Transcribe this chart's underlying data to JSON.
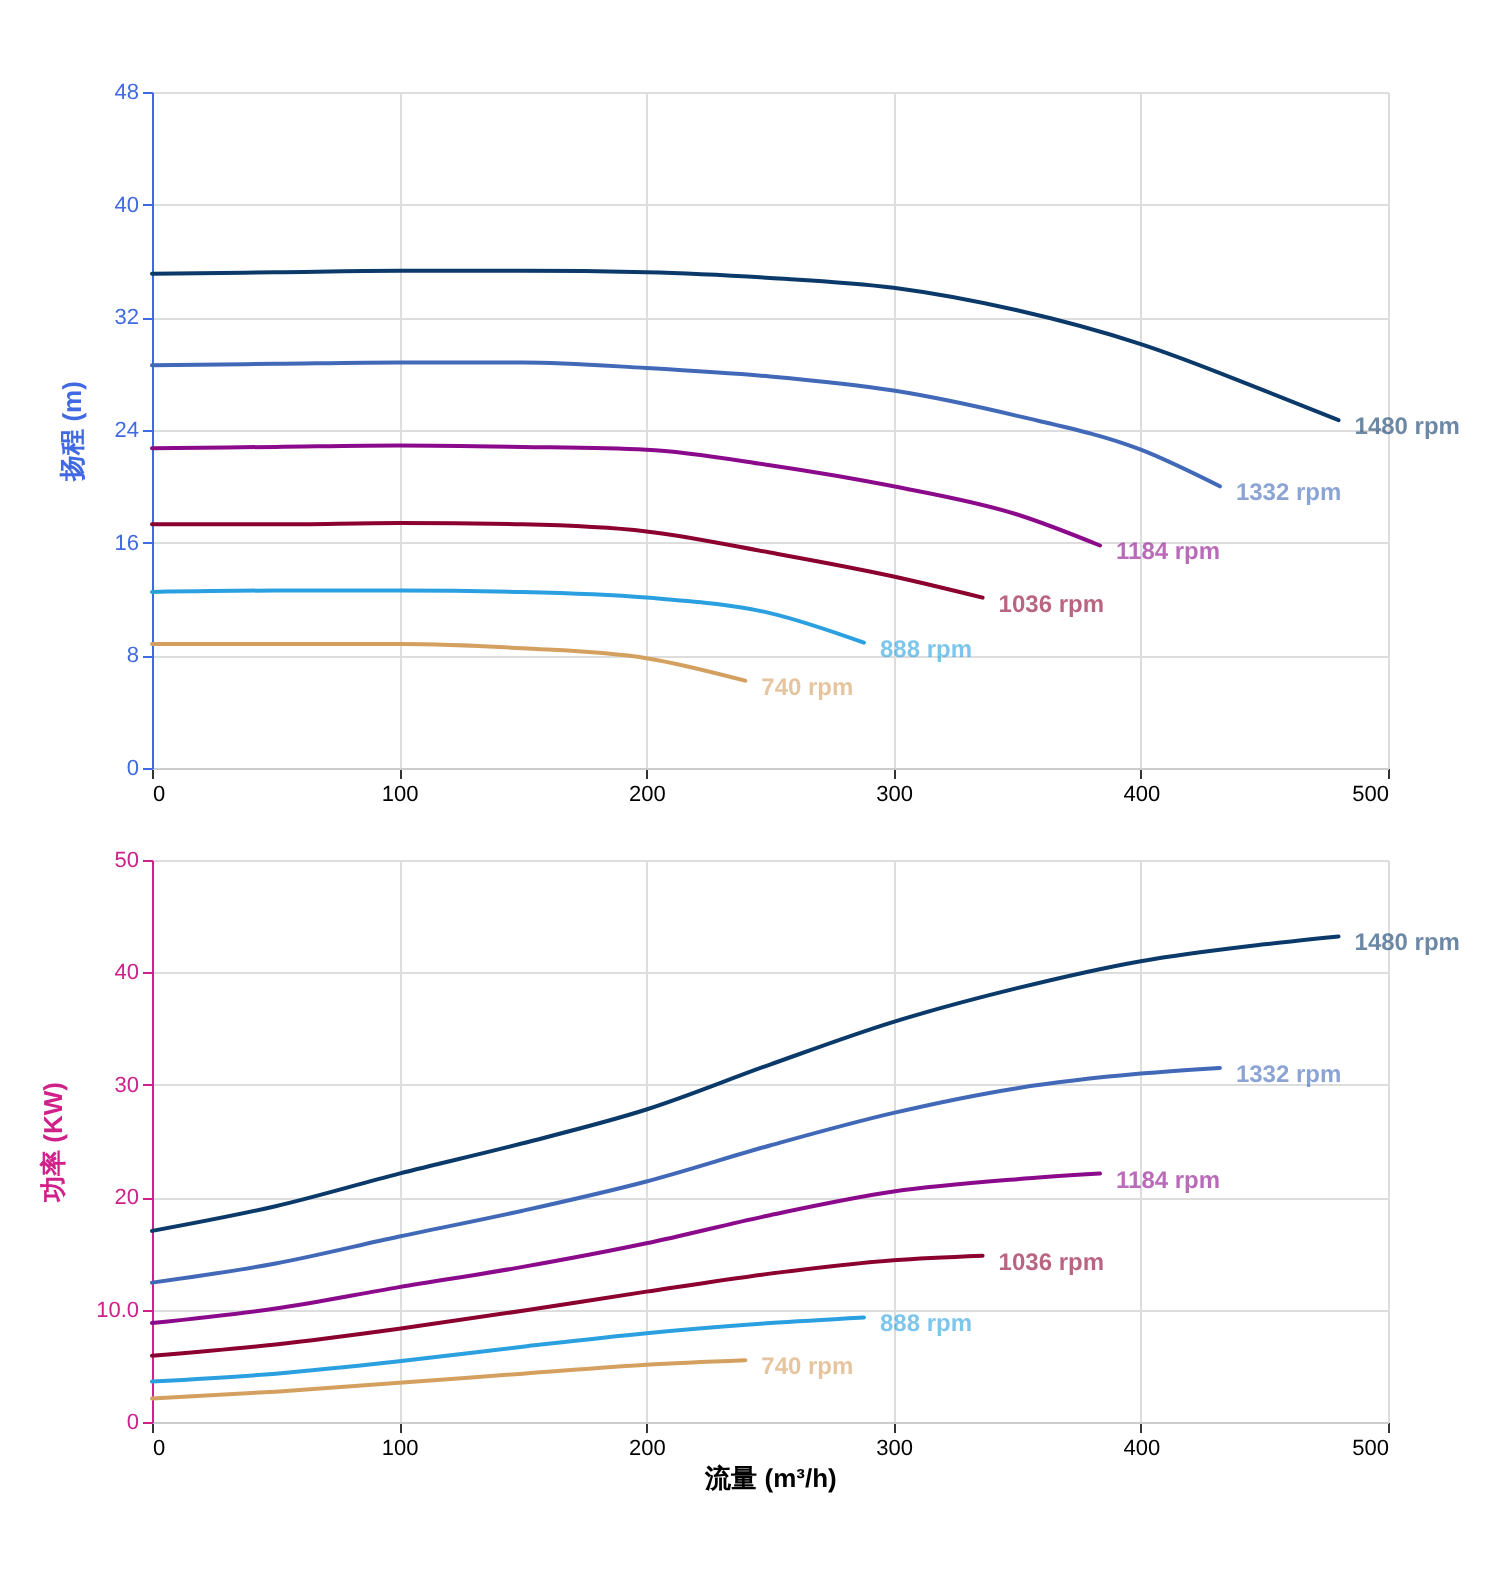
{
  "chart_data": [
    {
      "type": "line",
      "ylabel": "扬程 (m)",
      "xlim": [
        0,
        500
      ],
      "xticks": [
        0,
        100,
        200,
        300,
        400,
        500
      ],
      "ylim": [
        0,
        48
      ],
      "yticks": [
        0,
        8,
        16,
        24,
        32,
        40,
        48
      ],
      "grid": true,
      "legend": false,
      "line_style": "solid",
      "marker": "none",
      "series": [
        {
          "name": "1480 rpm",
          "color": "#0b3a6a",
          "x": [
            0,
            50,
            100,
            150,
            200,
            250,
            300,
            350,
            400,
            450,
            480
          ],
          "values": [
            35.1,
            35.2,
            35.3,
            35.3,
            35.2,
            34.8,
            34.1,
            32.5,
            30.1,
            26.8,
            24.7
          ]
        },
        {
          "name": "1332 rpm",
          "color": "#4169b8",
          "x": [
            0,
            50,
            100,
            150,
            200,
            250,
            300,
            350,
            400,
            432
          ],
          "values": [
            28.6,
            28.7,
            28.8,
            28.8,
            28.4,
            27.8,
            26.8,
            25.0,
            22.6,
            20.0
          ]
        },
        {
          "name": "1184 rpm",
          "color": "#8b0a8b",
          "x": [
            0,
            50,
            100,
            150,
            200,
            250,
            300,
            350,
            383.5
          ],
          "values": [
            22.7,
            22.8,
            22.9,
            22.8,
            22.6,
            21.5,
            20.0,
            18.0,
            15.8
          ]
        },
        {
          "name": "1036 rpm",
          "color": "#8b0030",
          "x": [
            0,
            50,
            100,
            150,
            200,
            250,
            300,
            336
          ],
          "values": [
            17.3,
            17.3,
            17.4,
            17.3,
            16.8,
            15.3,
            13.6,
            12.1
          ]
        },
        {
          "name": "888 rpm",
          "color": "#2aa0e0",
          "x": [
            0,
            50,
            100,
            150,
            200,
            250,
            288
          ],
          "values": [
            12.5,
            12.6,
            12.6,
            12.5,
            12.1,
            11.0,
            8.9
          ]
        },
        {
          "name": "740 rpm",
          "color": "#d4a060",
          "x": [
            0,
            50,
            100,
            150,
            200,
            240
          ],
          "values": [
            8.8,
            8.8,
            8.8,
            8.5,
            7.8,
            6.2
          ]
        }
      ]
    },
    {
      "type": "line",
      "xlabel": "流量 (m³/h)",
      "ylabel": "功率 (KW)",
      "xlim": [
        0,
        500
      ],
      "xticks": [
        0,
        100,
        200,
        300,
        400,
        500
      ],
      "ylim": [
        0,
        50
      ],
      "yticks": [
        0,
        {
          "value": 10,
          "label": "10.0"
        },
        20,
        30,
        40,
        50
      ],
      "grid": true,
      "legend": false,
      "line_style": "solid",
      "marker": "none",
      "series": [
        {
          "name": "1480 rpm",
          "color": "#0b3a6a",
          "x": [
            0,
            50,
            100,
            150,
            200,
            250,
            300,
            350,
            400,
            450,
            480
          ],
          "values": [
            17.0,
            19.2,
            22.1,
            24.8,
            27.8,
            31.8,
            35.6,
            38.6,
            41.0,
            42.5,
            43.2
          ]
        },
        {
          "name": "1332 rpm",
          "color": "#4169b8",
          "x": [
            0,
            50,
            100,
            150,
            200,
            250,
            300,
            350,
            400,
            432
          ],
          "values": [
            12.4,
            14.1,
            16.5,
            18.8,
            21.4,
            24.6,
            27.5,
            29.7,
            31.0,
            31.5
          ]
        },
        {
          "name": "1184 rpm",
          "color": "#8b0a8b",
          "x": [
            0,
            50,
            100,
            150,
            200,
            250,
            300,
            350,
            383.5
          ],
          "values": [
            8.8,
            10.1,
            12.0,
            13.8,
            15.9,
            18.4,
            20.5,
            21.6,
            22.1
          ]
        },
        {
          "name": "1036 rpm",
          "color": "#8b0030",
          "x": [
            0,
            50,
            100,
            150,
            200,
            250,
            300,
            336
          ],
          "values": [
            5.9,
            6.9,
            8.3,
            9.9,
            11.6,
            13.2,
            14.4,
            14.8
          ]
        },
        {
          "name": "888 rpm",
          "color": "#2aa0e0",
          "x": [
            0,
            50,
            100,
            150,
            200,
            250,
            288
          ],
          "values": [
            3.6,
            4.3,
            5.4,
            6.7,
            7.9,
            8.8,
            9.3
          ]
        },
        {
          "name": "740 rpm",
          "color": "#d4a060",
          "x": [
            0,
            50,
            100,
            150,
            200,
            240
          ],
          "values": [
            2.1,
            2.7,
            3.5,
            4.3,
            5.1,
            5.5
          ]
        }
      ]
    }
  ]
}
